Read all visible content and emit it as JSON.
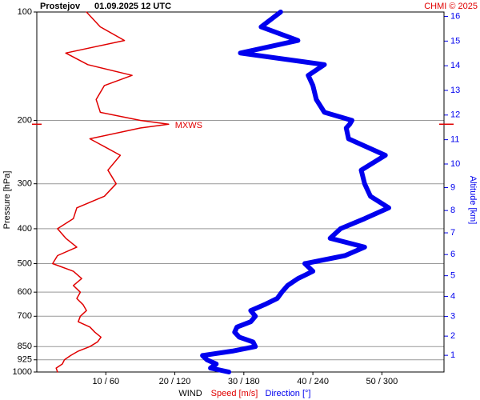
{
  "chart_data": {
    "type": "profile",
    "title": "Prostejov",
    "subtitle": "01.09.2025 12 UTC",
    "credit": "CHMI © 2025",
    "ylabel": "Pressure [hPa]",
    "y2label": "Altitude [km]",
    "xlabel": "WIND",
    "log_y": true,
    "grid": true,
    "y": [
      1000,
      975,
      950,
      925,
      900,
      875,
      850,
      825,
      800,
      775,
      750,
      725,
      700,
      675,
      650,
      625,
      600,
      575,
      550,
      525,
      500,
      475,
      450,
      425,
      400,
      375,
      350,
      325,
      300,
      275,
      250,
      225,
      210,
      205,
      200,
      190,
      175,
      160,
      150,
      140,
      130,
      120,
      110,
      100
    ],
    "ylim": [
      1000,
      100
    ],
    "yticks": [
      100,
      200,
      300,
      400,
      500,
      600,
      700,
      850,
      925,
      1000
    ],
    "y2_scale": "standard-atmosphere",
    "y2ticks": [
      1,
      2,
      3,
      4,
      5,
      6,
      7,
      8,
      9,
      10,
      11,
      12,
      13,
      14,
      15,
      16
    ],
    "xlim": [
      0,
      59
    ],
    "x2lim": [
      0,
      354
    ],
    "xticks": [
      {
        "value": 10,
        "label": "10 / 60"
      },
      {
        "value": 20,
        "label": "20 / 120"
      },
      {
        "value": 30,
        "label": "30 / 180"
      },
      {
        "value": 40,
        "label": "40 / 240"
      },
      {
        "value": 50,
        "label": "50 / 300"
      }
    ],
    "series": [
      {
        "name": "Speed [m/s]",
        "color": "#e00000",
        "axis": "x",
        "width": 1.5,
        "values": [
          3.0,
          2.8,
          3.7,
          4.0,
          4.9,
          6.0,
          7.7,
          8.8,
          9.3,
          8.4,
          7.7,
          6.0,
          6.3,
          7.2,
          6.7,
          5.8,
          6.3,
          5.3,
          6.5,
          5.3,
          2.3,
          3.0,
          5.8,
          4.2,
          3.0,
          5.3,
          5.8,
          9.8,
          11.5,
          10.3,
          12.1,
          7.7,
          15.0,
          19.1,
          15.0,
          9.2,
          8.6,
          9.8,
          13.8,
          7.4,
          4.2,
          12.7,
          9.2,
          7.2
        ]
      },
      {
        "name": "Direction [°]",
        "color": "#0000ee",
        "axis": "x2",
        "width": 6,
        "values": [
          167,
          151,
          156,
          148,
          144,
          170,
          190,
          188,
          176,
          172,
          174,
          186,
          190,
          186,
          198,
          209,
          213,
          218,
          227,
          240,
          233,
          268,
          285,
          255,
          264,
          285,
          306,
          290,
          285,
          282,
          303,
          271,
          269,
          272,
          274,
          250,
          243,
          240,
          236,
          250,
          177,
          227,
          195,
          212
        ]
      }
    ],
    "annotations": [
      {
        "text": "MXWS",
        "pressure": 205,
        "speed": 19.1,
        "color": "#e00000"
      }
    ]
  }
}
